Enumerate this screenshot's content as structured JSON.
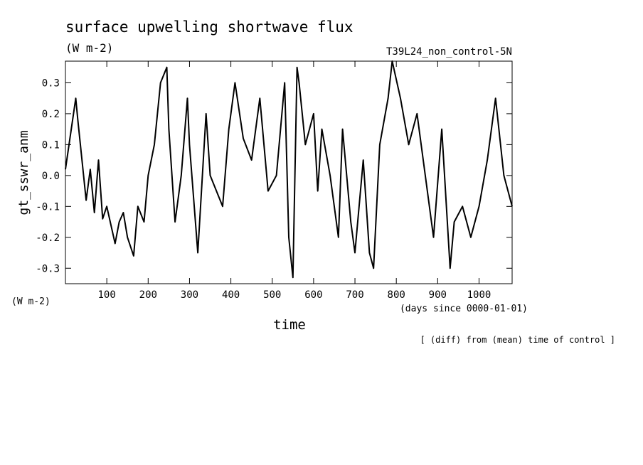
{
  "chart_data": {
    "type": "line",
    "title": "surface upwelling shortwave flux",
    "units": "(W m-2)",
    "run_label": "T39L24_non_control-5N",
    "ylabel": "gt_sswr_anm",
    "y_units": "(W m-2)",
    "xlabel": "time",
    "x_units": "(days since 0000-01-01)",
    "note": "[ (diff) from (mean) time of control ]",
    "xlim": [
      0,
      1080
    ],
    "ylim": [
      -0.35,
      0.37
    ],
    "x_ticks": [
      100,
      200,
      300,
      400,
      500,
      600,
      700,
      800,
      900,
      1000
    ],
    "x_tick_labels": [
      "100",
      "200",
      "300",
      "400",
      "500",
      "600",
      "700",
      "800",
      "900",
      "1000"
    ],
    "y_ticks": [
      -0.3,
      -0.2,
      -0.1,
      0.0,
      0.1,
      0.2,
      0.3
    ],
    "y_tick_labels": [
      "-0.3",
      "-0.2",
      "-0.1",
      "0.0",
      "0.1",
      "0.2",
      "0.3"
    ],
    "grid": false,
    "color": "#000000",
    "series": [
      {
        "x": [
          0,
          25,
          30,
          50,
          60,
          70,
          80,
          90,
          100,
          120,
          130,
          140,
          150,
          165,
          175,
          190,
          200,
          215,
          230,
          245,
          250,
          265,
          280,
          295,
          300,
          320,
          340,
          350,
          380,
          395,
          410,
          430,
          450,
          470,
          490,
          510,
          530,
          540,
          550,
          560,
          565,
          580,
          600,
          610,
          620,
          640,
          660,
          670,
          690,
          700,
          720,
          735,
          745,
          760,
          780,
          790,
          810,
          830,
          850,
          870,
          890,
          910,
          930,
          940,
          960,
          980,
          1000,
          1020,
          1040,
          1060,
          1080
        ],
        "y": [
          0.02,
          0.25,
          0.18,
          -0.08,
          0.02,
          -0.12,
          0.05,
          -0.14,
          -0.1,
          -0.22,
          -0.15,
          -0.12,
          -0.2,
          -0.26,
          -0.1,
          -0.15,
          0.0,
          0.1,
          0.3,
          0.35,
          0.15,
          -0.15,
          0.0,
          0.25,
          0.1,
          -0.25,
          0.2,
          0.0,
          -0.1,
          0.15,
          0.3,
          0.12,
          0.05,
          0.25,
          -0.05,
          0.0,
          0.3,
          -0.2,
          -0.33,
          0.35,
          0.3,
          0.1,
          0.2,
          -0.05,
          0.15,
          0.0,
          -0.2,
          0.15,
          -0.15,
          -0.25,
          0.05,
          -0.25,
          -0.3,
          0.1,
          0.25,
          0.37,
          0.25,
          0.1,
          0.2,
          0.0,
          -0.2,
          0.15,
          -0.3,
          -0.15,
          -0.1,
          -0.2,
          -0.1,
          0.05,
          0.25,
          0.0,
          -0.1
        ]
      }
    ]
  }
}
